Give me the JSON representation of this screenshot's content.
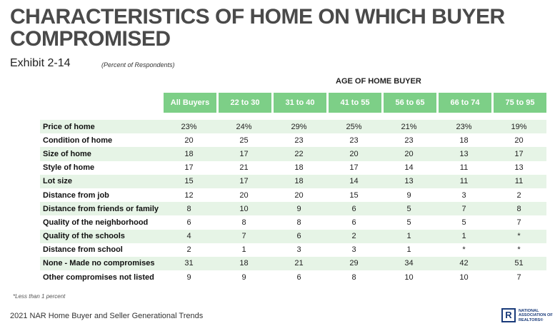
{
  "title": "CHARACTERISTICS OF HOME ON WHICH BUYER COMPROMISED",
  "exhibit": "Exhibit 2-14",
  "subtitle": "(Percent of Respondents)",
  "group_heading": "AGE OF HOME BUYER",
  "columns": [
    "All Buyers",
    "22 to 30",
    "31 to 40",
    "41 to 55",
    "56 to 65",
    "66 to 74",
    "75 to 95"
  ],
  "rows": [
    {
      "label": "Price of home",
      "values": [
        "23%",
        "24%",
        "29%",
        "25%",
        "21%",
        "23%",
        "19%"
      ]
    },
    {
      "label": "Condition of home",
      "values": [
        "20",
        "25",
        "23",
        "23",
        "23",
        "18",
        "20"
      ]
    },
    {
      "label": "Size of home",
      "values": [
        "18",
        "17",
        "22",
        "20",
        "20",
        "13",
        "17"
      ]
    },
    {
      "label": "Style of home",
      "values": [
        "17",
        "21",
        "18",
        "17",
        "14",
        "11",
        "13"
      ]
    },
    {
      "label": "Lot size",
      "values": [
        "15",
        "17",
        "18",
        "14",
        "13",
        "11",
        "11"
      ]
    },
    {
      "label": "Distance from job",
      "values": [
        "12",
        "20",
        "20",
        "15",
        "9",
        "3",
        "2"
      ]
    },
    {
      "label": "Distance from friends or family",
      "values": [
        "8",
        "10",
        "9",
        "6",
        "5",
        "7",
        "8"
      ]
    },
    {
      "label": "Quality of the neighborhood",
      "values": [
        "6",
        "8",
        "8",
        "6",
        "5",
        "5",
        "7"
      ]
    },
    {
      "label": "Quality of the schools",
      "values": [
        "4",
        "7",
        "6",
        "2",
        "1",
        "1",
        "*"
      ]
    },
    {
      "label": "Distance from school",
      "values": [
        "2",
        "1",
        "3",
        "3",
        "1",
        "*",
        "*"
      ]
    },
    {
      "label": "None - Made no compromises",
      "values": [
        "31",
        "18",
        "21",
        "29",
        "34",
        "42",
        "51"
      ]
    },
    {
      "label": "Other compromises not listed",
      "values": [
        "9",
        "9",
        "6",
        "8",
        "10",
        "10",
        "7"
      ]
    }
  ],
  "footnote": "*Less than 1 percent",
  "footer": "2021 NAR Home Buyer and Seller Generational Trends",
  "logo": {
    "mark": "R",
    "lines": [
      "NATIONAL",
      "ASSOCIATION OF",
      "REALTORS®"
    ],
    "color": "#1a3b7a"
  },
  "colors": {
    "header_fill": "#7dcf87",
    "row_shade": "#e6f4e6"
  }
}
